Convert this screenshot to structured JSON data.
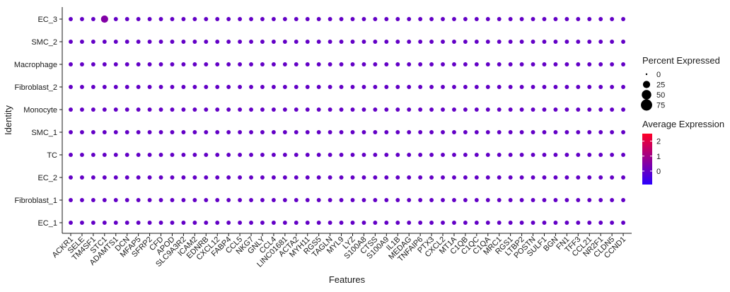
{
  "chart_data": {
    "type": "dotplot",
    "xlabel": "Features",
    "ylabel": "Identity",
    "features": [
      "ACKR1",
      "SELE",
      "TM4SF1",
      "STC1",
      "ADAMTS1",
      "DCN",
      "MFAP5",
      "SFRP2",
      "CFD",
      "APOD",
      "SLC9A3R2",
      "ICAM2",
      "EDNRB",
      "CXCL12",
      "FABP4",
      "CCL5",
      "NKG7",
      "GNLY",
      "CCL4",
      "LINC01681",
      "ACTA2",
      "MYH11",
      "RGS5",
      "TAGLN",
      "MYL9",
      "LYZ",
      "S100A8",
      "CTSS",
      "S100A9",
      "IL1B",
      "MEDAG",
      "TNFAIP6",
      "PTX3",
      "CXCL2",
      "MT1A",
      "C1QB",
      "C1QC",
      "C1QA",
      "MRC1",
      "RGS1",
      "LTBP2",
      "POSTN",
      "SULF1",
      "BGN",
      "FN1",
      "TFF3",
      "CCL21",
      "NR2F1",
      "CLDN5",
      "CCND1"
    ],
    "identities": [
      "EC_3",
      "SMC_2",
      "Macrophage",
      "Fibroblast_2",
      "Monocyte",
      "SMC_1",
      "TC",
      "EC_2",
      "Fibroblast_1",
      "EC_1"
    ],
    "pct_expressed": {
      "EC_3": [
        5,
        5,
        5,
        25,
        5,
        5,
        5,
        5,
        5,
        5,
        5,
        5,
        5,
        5,
        5,
        5,
        5,
        5,
        5,
        5,
        5,
        5,
        5,
        5,
        5,
        5,
        5,
        5,
        5,
        5,
        5,
        5,
        5,
        5,
        5,
        5,
        5,
        5,
        5,
        5,
        5,
        5,
        5,
        5,
        5,
        5,
        5,
        5,
        5,
        5
      ],
      "SMC_2": [
        5,
        5,
        5,
        5,
        5,
        5,
        5,
        5,
        5,
        5,
        5,
        5,
        5,
        5,
        5,
        5,
        5,
        5,
        5,
        5,
        5,
        5,
        5,
        5,
        5,
        5,
        5,
        5,
        5,
        5,
        5,
        5,
        5,
        5,
        5,
        5,
        5,
        5,
        5,
        5,
        5,
        5,
        5,
        5,
        5,
        5,
        5,
        5,
        5,
        5
      ],
      "Macrophage": [
        5,
        5,
        5,
        5,
        5,
        5,
        5,
        5,
        5,
        5,
        5,
        5,
        5,
        5,
        5,
        5,
        5,
        5,
        5,
        5,
        5,
        5,
        5,
        5,
        5,
        5,
        5,
        5,
        5,
        5,
        5,
        5,
        5,
        5,
        5,
        5,
        5,
        5,
        5,
        5,
        5,
        5,
        5,
        5,
        5,
        5,
        5,
        5,
        5,
        5
      ],
      "Fibroblast_2": [
        5,
        5,
        5,
        5,
        5,
        5,
        5,
        5,
        5,
        5,
        5,
        5,
        5,
        5,
        5,
        5,
        5,
        5,
        5,
        5,
        5,
        5,
        5,
        5,
        5,
        5,
        5,
        5,
        5,
        5,
        5,
        5,
        5,
        5,
        5,
        5,
        5,
        5,
        5,
        5,
        5,
        5,
        5,
        5,
        5,
        5,
        5,
        5,
        5,
        5
      ],
      "Monocyte": [
        5,
        5,
        5,
        5,
        5,
        5,
        5,
        5,
        5,
        5,
        5,
        5,
        5,
        5,
        5,
        5,
        5,
        5,
        5,
        5,
        5,
        5,
        5,
        5,
        5,
        5,
        5,
        5,
        5,
        5,
        5,
        5,
        5,
        5,
        5,
        5,
        5,
        5,
        5,
        5,
        5,
        5,
        5,
        5,
        5,
        5,
        5,
        5,
        5,
        5
      ],
      "SMC_1": [
        5,
        5,
        5,
        5,
        5,
        5,
        5,
        5,
        5,
        5,
        5,
        5,
        5,
        5,
        5,
        5,
        5,
        5,
        5,
        5,
        5,
        5,
        5,
        5,
        5,
        5,
        5,
        5,
        5,
        5,
        5,
        5,
        5,
        5,
        5,
        5,
        5,
        5,
        5,
        5,
        5,
        5,
        5,
        5,
        5,
        5,
        5,
        5,
        5,
        5
      ],
      "TC": [
        5,
        5,
        5,
        5,
        5,
        5,
        5,
        5,
        5,
        5,
        5,
        5,
        5,
        5,
        5,
        5,
        5,
        5,
        5,
        5,
        5,
        5,
        5,
        5,
        5,
        5,
        5,
        5,
        5,
        5,
        5,
        5,
        5,
        5,
        5,
        5,
        5,
        5,
        5,
        5,
        5,
        5,
        5,
        5,
        5,
        5,
        5,
        5,
        5,
        5
      ],
      "EC_2": [
        5,
        5,
        5,
        5,
        5,
        5,
        5,
        5,
        5,
        5,
        5,
        5,
        5,
        5,
        5,
        5,
        5,
        5,
        5,
        5,
        5,
        5,
        5,
        5,
        5,
        5,
        5,
        5,
        5,
        5,
        5,
        5,
        5,
        5,
        5,
        5,
        5,
        5,
        5,
        5,
        5,
        5,
        5,
        5,
        5,
        5,
        5,
        5,
        5,
        5
      ],
      "Fibroblast_1": [
        5,
        5,
        5,
        5,
        5,
        5,
        5,
        5,
        5,
        5,
        5,
        5,
        5,
        5,
        5,
        5,
        5,
        5,
        5,
        5,
        5,
        5,
        5,
        5,
        5,
        5,
        5,
        5,
        5,
        5,
        5,
        5,
        5,
        5,
        5,
        5,
        5,
        5,
        5,
        5,
        5,
        5,
        5,
        5,
        5,
        5,
        5,
        5,
        5,
        5
      ],
      "EC_1": [
        5,
        5,
        5,
        5,
        5,
        5,
        5,
        5,
        5,
        5,
        5,
        5,
        5,
        5,
        5,
        5,
        5,
        5,
        5,
        5,
        5,
        5,
        5,
        5,
        5,
        5,
        5,
        5,
        5,
        5,
        5,
        5,
        5,
        5,
        5,
        5,
        5,
        5,
        5,
        5,
        5,
        5,
        5,
        5,
        5,
        5,
        5,
        5,
        5,
        5
      ]
    },
    "avg_expression": {
      "EC_3": [
        0,
        0,
        0,
        0.5,
        0,
        0,
        0,
        0,
        0,
        0,
        0,
        0,
        0,
        0,
        0,
        0,
        0,
        0,
        0,
        0,
        0,
        0,
        0,
        0,
        0,
        0,
        0,
        0,
        0,
        0,
        0,
        0,
        0,
        0,
        0,
        0,
        0,
        0,
        0,
        0,
        0,
        0,
        0,
        0,
        0,
        0,
        0,
        0,
        0,
        0
      ],
      "SMC_2": [
        0,
        0,
        0,
        0,
        0,
        0,
        0,
        0,
        0,
        0,
        0,
        0,
        0,
        0,
        0,
        0,
        0,
        0,
        0,
        0,
        0,
        0,
        0,
        0,
        0,
        0,
        0,
        0,
        0,
        0,
        0,
        0,
        0,
        0,
        0,
        0,
        0,
        0,
        0,
        0,
        0,
        0,
        0,
        0,
        0,
        0,
        0,
        0,
        0,
        0
      ],
      "Macrophage": [
        0,
        0,
        0,
        0,
        0,
        0,
        0,
        0,
        0,
        0,
        0,
        0,
        0,
        0,
        0,
        0,
        0,
        0,
        0,
        0,
        0,
        0,
        0,
        0,
        0,
        0,
        0,
        0,
        0,
        0,
        0,
        0,
        0,
        0,
        0,
        0,
        0,
        0,
        0,
        0,
        0,
        0,
        0,
        0,
        0,
        0,
        0,
        0,
        0,
        0
      ],
      "Fibroblast_2": [
        0,
        0,
        0,
        0,
        0,
        0,
        0,
        0,
        0,
        0,
        0,
        0,
        0,
        0,
        0,
        0,
        0,
        0,
        0,
        0,
        0,
        0,
        0,
        0,
        0,
        0,
        0,
        0,
        0,
        0,
        0,
        0,
        0,
        0,
        0,
        0,
        0,
        0,
        0,
        0,
        0,
        0,
        0,
        0,
        0,
        0,
        0,
        0,
        0,
        0
      ],
      "Monocyte": [
        0,
        0,
        0,
        0,
        0,
        0,
        0,
        0,
        0,
        0,
        0,
        0,
        0,
        0,
        0,
        0,
        0,
        0,
        0,
        0,
        0,
        0,
        0,
        0,
        0,
        0,
        0,
        0,
        0,
        0,
        0,
        0,
        0,
        0,
        0,
        0,
        0,
        0,
        0,
        0,
        0,
        0,
        0,
        0,
        0,
        0,
        0,
        0,
        0,
        0
      ],
      "SMC_1": [
        0,
        0,
        0,
        0,
        0,
        0,
        0,
        0,
        0,
        0,
        0,
        0,
        0,
        0,
        0,
        0,
        0,
        0,
        0,
        0,
        0,
        0,
        0,
        0,
        0,
        0,
        0,
        0,
        0,
        0,
        0,
        0,
        0,
        0,
        0,
        0,
        0,
        0,
        0,
        0,
        0,
        0,
        0,
        0,
        0,
        0,
        0,
        0,
        0,
        0
      ],
      "TC": [
        0,
        0,
        0,
        0,
        0,
        0,
        0,
        0,
        0,
        0,
        0,
        0,
        0,
        0,
        0,
        0,
        0,
        0,
        0,
        0,
        0,
        0,
        0,
        0,
        0,
        0,
        0,
        0,
        0,
        0,
        0,
        0,
        0,
        0,
        0,
        0,
        0,
        0,
        0,
        0,
        0,
        0,
        0,
        0,
        0,
        0,
        0,
        0,
        0,
        0
      ],
      "EC_2": [
        0,
        0,
        0,
        0,
        0,
        0,
        0,
        0,
        0,
        0,
        0,
        0,
        0,
        0,
        0,
        0,
        0,
        0,
        0,
        0,
        0,
        0,
        0,
        0,
        0,
        0,
        0,
        0,
        0,
        0,
        0,
        0,
        0,
        0,
        0,
        0,
        0,
        0,
        0,
        0,
        0,
        0,
        0,
        0,
        0,
        0,
        0,
        0,
        0,
        0
      ],
      "Fibroblast_1": [
        0,
        0,
        0,
        0,
        0,
        0,
        0,
        0,
        0,
        0,
        0,
        0,
        0,
        0,
        0,
        0,
        0,
        0,
        0,
        0,
        0,
        0,
        0,
        0,
        0,
        0,
        0,
        0,
        0,
        0,
        0,
        0,
        0,
        0,
        0,
        0,
        0,
        0,
        0,
        0,
        0,
        0,
        0,
        0,
        0,
        0,
        0,
        0,
        0,
        0
      ],
      "EC_1": [
        0,
        0,
        0,
        0,
        0,
        0,
        0,
        0,
        0,
        0,
        0,
        0,
        0,
        0,
        0,
        0,
        0,
        0,
        0,
        0,
        0,
        0,
        0,
        0,
        0,
        0,
        0,
        0,
        0,
        0,
        0,
        0,
        0,
        0,
        0,
        0,
        0,
        0,
        0,
        0,
        0,
        0,
        0,
        0,
        0,
        0,
        0,
        0,
        0,
        0
      ]
    },
    "legend_size": {
      "title": "Percent Expressed",
      "values": [
        0,
        25,
        50,
        75
      ],
      "labels": [
        "0",
        "25",
        "50",
        "75"
      ]
    },
    "legend_color": {
      "title": "Average Expression",
      "range": [
        -0.9,
        2.5
      ],
      "ticks": [
        0,
        1,
        2
      ],
      "tick_labels": [
        "0",
        "1",
        "2"
      ],
      "low_color": "#2b00ff",
      "high_color": "#ff0026"
    }
  }
}
